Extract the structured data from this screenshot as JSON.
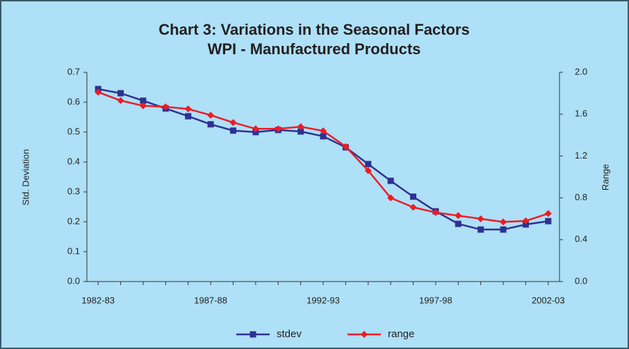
{
  "chart_data": {
    "type": "line",
    "title": "Chart 3: Variations in the Seasonal  Factors",
    "subtitle": "WPI - Manufactured Products",
    "y_label": "Std. Deviation",
    "y2_label": "Range",
    "categories": [
      "1982-83",
      null,
      null,
      null,
      null,
      "1987-88",
      null,
      null,
      null,
      null,
      "1992-93",
      null,
      null,
      null,
      null,
      "1997-98",
      null,
      null,
      null,
      null,
      "2002-03"
    ],
    "series": [
      {
        "name": "stdev",
        "color": "#2e3192",
        "marker": "square",
        "values": [
          0.644,
          0.63,
          0.605,
          0.579,
          0.553,
          0.526,
          0.505,
          0.5,
          0.507,
          0.502,
          0.486,
          0.449,
          0.393,
          0.337,
          0.284,
          0.235,
          0.193,
          0.174,
          0.174,
          0.191,
          0.202
        ]
      },
      {
        "name": "range",
        "color": "#ed1c24",
        "marker": "diamond",
        "axis": "y2",
        "values": [
          1.81,
          1.73,
          1.68,
          1.67,
          1.65,
          1.59,
          1.52,
          1.46,
          1.46,
          1.48,
          1.44,
          1.29,
          1.06,
          0.8,
          0.71,
          0.66,
          0.63,
          0.6,
          0.57,
          0.58,
          0.65
        ]
      }
    ],
    "ylim": [
      0,
      0.7
    ],
    "yticks": [
      {
        "value": 0,
        "label": "0.0"
      },
      0.1,
      0.2,
      0.3,
      0.4,
      0.5,
      0.6,
      0.7
    ],
    "y2lim": [
      0,
      2
    ],
    "y2ticks": [
      {
        "value": 0,
        "label": "0.0"
      },
      0.4,
      0.8,
      1.2,
      1.6,
      {
        "value": 2,
        "label": "2.0"
      }
    ],
    "legend": "bottom"
  }
}
